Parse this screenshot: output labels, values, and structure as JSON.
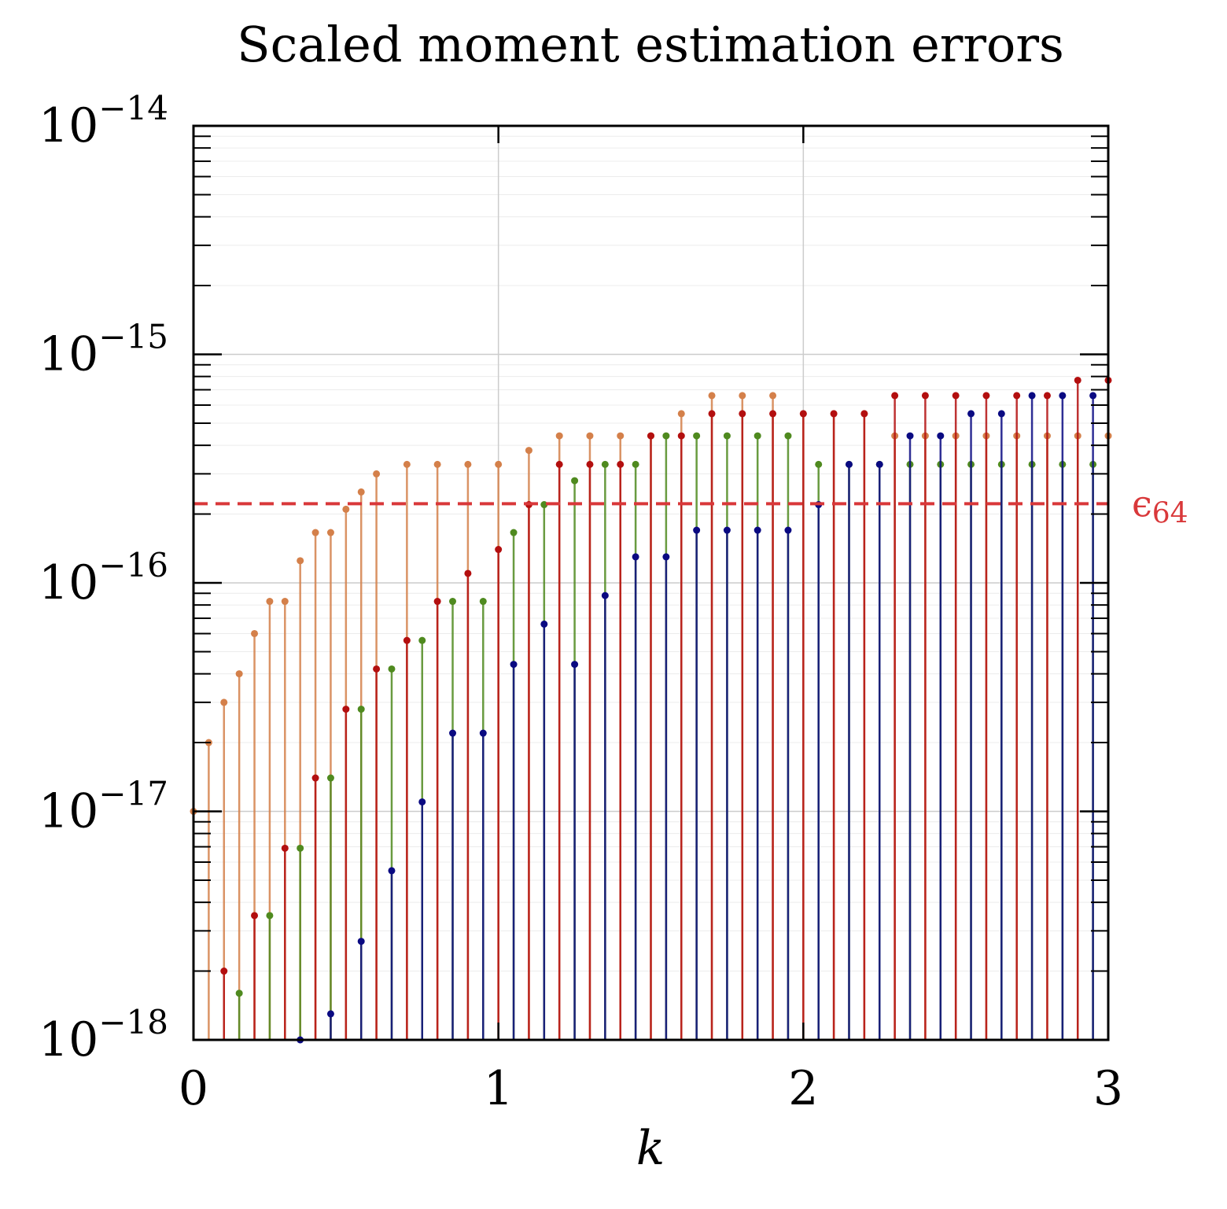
{
  "chart_data": {
    "type": "scatter",
    "title": "Scaled moment estimation errors",
    "xlabel": "k",
    "ylabel": "",
    "xlim": [
      0,
      3
    ],
    "ylim": [
      1e-18,
      1e-14
    ],
    "yscale": "log",
    "grid": true,
    "legend": "none",
    "x_ticks": [
      0,
      1,
      2,
      3
    ],
    "x_tick_labels": [
      "0",
      "1",
      "2",
      "3"
    ],
    "y_ticks": [
      1e-18,
      1e-17,
      1e-16,
      1e-15,
      1e-14
    ],
    "y_tick_labels": [
      {
        "base": "10",
        "exp": "−18"
      },
      {
        "base": "10",
        "exp": "−17"
      },
      {
        "base": "10",
        "exp": "−16"
      },
      {
        "base": "10",
        "exp": "−15"
      },
      {
        "base": "10",
        "exp": "−14"
      }
    ],
    "reference_line": {
      "y": 2.22e-16,
      "label_base": "ϵ",
      "label_sub": "64",
      "color": "#d9383a",
      "style": "dashed"
    },
    "series": [
      {
        "color": "#d4804a",
        "points": [
          [
            0.0,
            1e-17
          ],
          [
            0.05,
            2e-17
          ],
          [
            0.1,
            3e-17
          ],
          [
            0.15,
            4e-17
          ],
          [
            0.2,
            6e-17
          ],
          [
            0.25,
            8.3e-17
          ],
          [
            0.3,
            8.3e-17
          ],
          [
            0.35,
            1.25e-16
          ],
          [
            0.4,
            1.66e-16
          ],
          [
            0.45,
            1.66e-16
          ],
          [
            0.5,
            2.1e-16
          ],
          [
            0.55,
            2.5e-16
          ],
          [
            0.6,
            3e-16
          ],
          [
            0.7,
            3.3e-16
          ],
          [
            0.8,
            3.3e-16
          ],
          [
            0.9,
            3.3e-16
          ],
          [
            1.0,
            3.3e-16
          ],
          [
            1.1,
            3.8e-16
          ],
          [
            1.2,
            4.4e-16
          ],
          [
            1.3,
            4.4e-16
          ],
          [
            1.4,
            4.4e-16
          ],
          [
            1.5,
            4.4e-16
          ],
          [
            1.6,
            5.5e-16
          ],
          [
            1.7,
            6.6e-16
          ],
          [
            1.8,
            6.6e-16
          ],
          [
            1.9,
            6.6e-16
          ],
          [
            2.0,
            5.5e-16
          ],
          [
            2.1,
            5.5e-16
          ],
          [
            2.2,
            5.5e-16
          ],
          [
            2.3,
            4.4e-16
          ],
          [
            2.4,
            4.4e-16
          ],
          [
            2.5,
            4.4e-16
          ],
          [
            2.6,
            4.4e-16
          ],
          [
            2.7,
            4.4e-16
          ],
          [
            2.8,
            4.4e-16
          ],
          [
            2.9,
            4.4e-16
          ],
          [
            3.0,
            4.4e-16
          ]
        ]
      },
      {
        "color": "#b30f0f",
        "points": [
          [
            0.1,
            2e-18
          ],
          [
            0.2,
            3.5e-18
          ],
          [
            0.3,
            6.9e-18
          ],
          [
            0.4,
            1.4e-17
          ],
          [
            0.5,
            2.8e-17
          ],
          [
            0.6,
            4.2e-17
          ],
          [
            0.7,
            5.6e-17
          ],
          [
            0.8,
            8.3e-17
          ],
          [
            0.9,
            1.1e-16
          ],
          [
            1.0,
            1.4e-16
          ],
          [
            1.1,
            2.2e-16
          ],
          [
            1.2,
            3.3e-16
          ],
          [
            1.3,
            3.3e-16
          ],
          [
            1.4,
            3.3e-16
          ],
          [
            1.5,
            4.4e-16
          ],
          [
            1.6,
            4.4e-16
          ],
          [
            1.7,
            5.5e-16
          ],
          [
            1.8,
            5.5e-16
          ],
          [
            1.9,
            5.5e-16
          ],
          [
            2.0,
            5.5e-16
          ],
          [
            2.1,
            5.5e-16
          ],
          [
            2.2,
            5.5e-16
          ],
          [
            2.3,
            6.6e-16
          ],
          [
            2.4,
            6.6e-16
          ],
          [
            2.5,
            6.6e-16
          ],
          [
            2.6,
            6.6e-16
          ],
          [
            2.7,
            6.6e-16
          ],
          [
            2.8,
            6.6e-16
          ],
          [
            2.9,
            7.7e-16
          ],
          [
            3.0,
            7.7e-16
          ]
        ]
      },
      {
        "color": "#4f8a1f",
        "points": [
          [
            0.15,
            1.6e-18
          ],
          [
            0.25,
            3.5e-18
          ],
          [
            0.35,
            6.9e-18
          ],
          [
            0.45,
            1.4e-17
          ],
          [
            0.55,
            2.8e-17
          ],
          [
            0.65,
            4.2e-17
          ],
          [
            0.75,
            5.6e-17
          ],
          [
            0.85,
            8.3e-17
          ],
          [
            0.95,
            8.3e-17
          ],
          [
            1.05,
            1.66e-16
          ],
          [
            1.15,
            2.2e-16
          ],
          [
            1.25,
            2.8e-16
          ],
          [
            1.35,
            3.3e-16
          ],
          [
            1.45,
            3.3e-16
          ],
          [
            1.55,
            4.4e-16
          ],
          [
            1.65,
            4.4e-16
          ],
          [
            1.75,
            4.4e-16
          ],
          [
            1.85,
            4.4e-16
          ],
          [
            1.95,
            4.4e-16
          ],
          [
            2.05,
            3.3e-16
          ],
          [
            2.15,
            3.3e-16
          ],
          [
            2.25,
            3.3e-16
          ],
          [
            2.35,
            3.3e-16
          ],
          [
            2.45,
            3.3e-16
          ],
          [
            2.55,
            3.3e-16
          ],
          [
            2.65,
            3.3e-16
          ],
          [
            2.75,
            3.3e-16
          ],
          [
            2.85,
            3.3e-16
          ],
          [
            2.95,
            3.3e-16
          ]
        ]
      },
      {
        "color": "#0a0a82",
        "points": [
          [
            0.35,
            1e-18
          ],
          [
            0.45,
            1.3e-18
          ],
          [
            0.55,
            2.7e-18
          ],
          [
            0.65,
            5.5e-18
          ],
          [
            0.75,
            1.1e-17
          ],
          [
            0.85,
            2.2e-17
          ],
          [
            0.95,
            2.2e-17
          ],
          [
            1.05,
            4.4e-17
          ],
          [
            1.15,
            6.6e-17
          ],
          [
            1.25,
            4.4e-17
          ],
          [
            1.35,
            8.8e-17
          ],
          [
            1.45,
            1.3e-16
          ],
          [
            1.55,
            1.3e-16
          ],
          [
            1.65,
            1.7e-16
          ],
          [
            1.75,
            1.7e-16
          ],
          [
            1.85,
            1.7e-16
          ],
          [
            1.95,
            1.7e-16
          ],
          [
            2.05,
            2.2e-16
          ],
          [
            2.15,
            3.3e-16
          ],
          [
            2.25,
            3.3e-16
          ],
          [
            2.35,
            4.4e-16
          ],
          [
            2.45,
            4.4e-16
          ],
          [
            2.55,
            5.5e-16
          ],
          [
            2.65,
            5.5e-16
          ],
          [
            2.75,
            6.6e-16
          ],
          [
            2.85,
            6.6e-16
          ],
          [
            2.95,
            6.6e-16
          ]
        ]
      }
    ]
  }
}
